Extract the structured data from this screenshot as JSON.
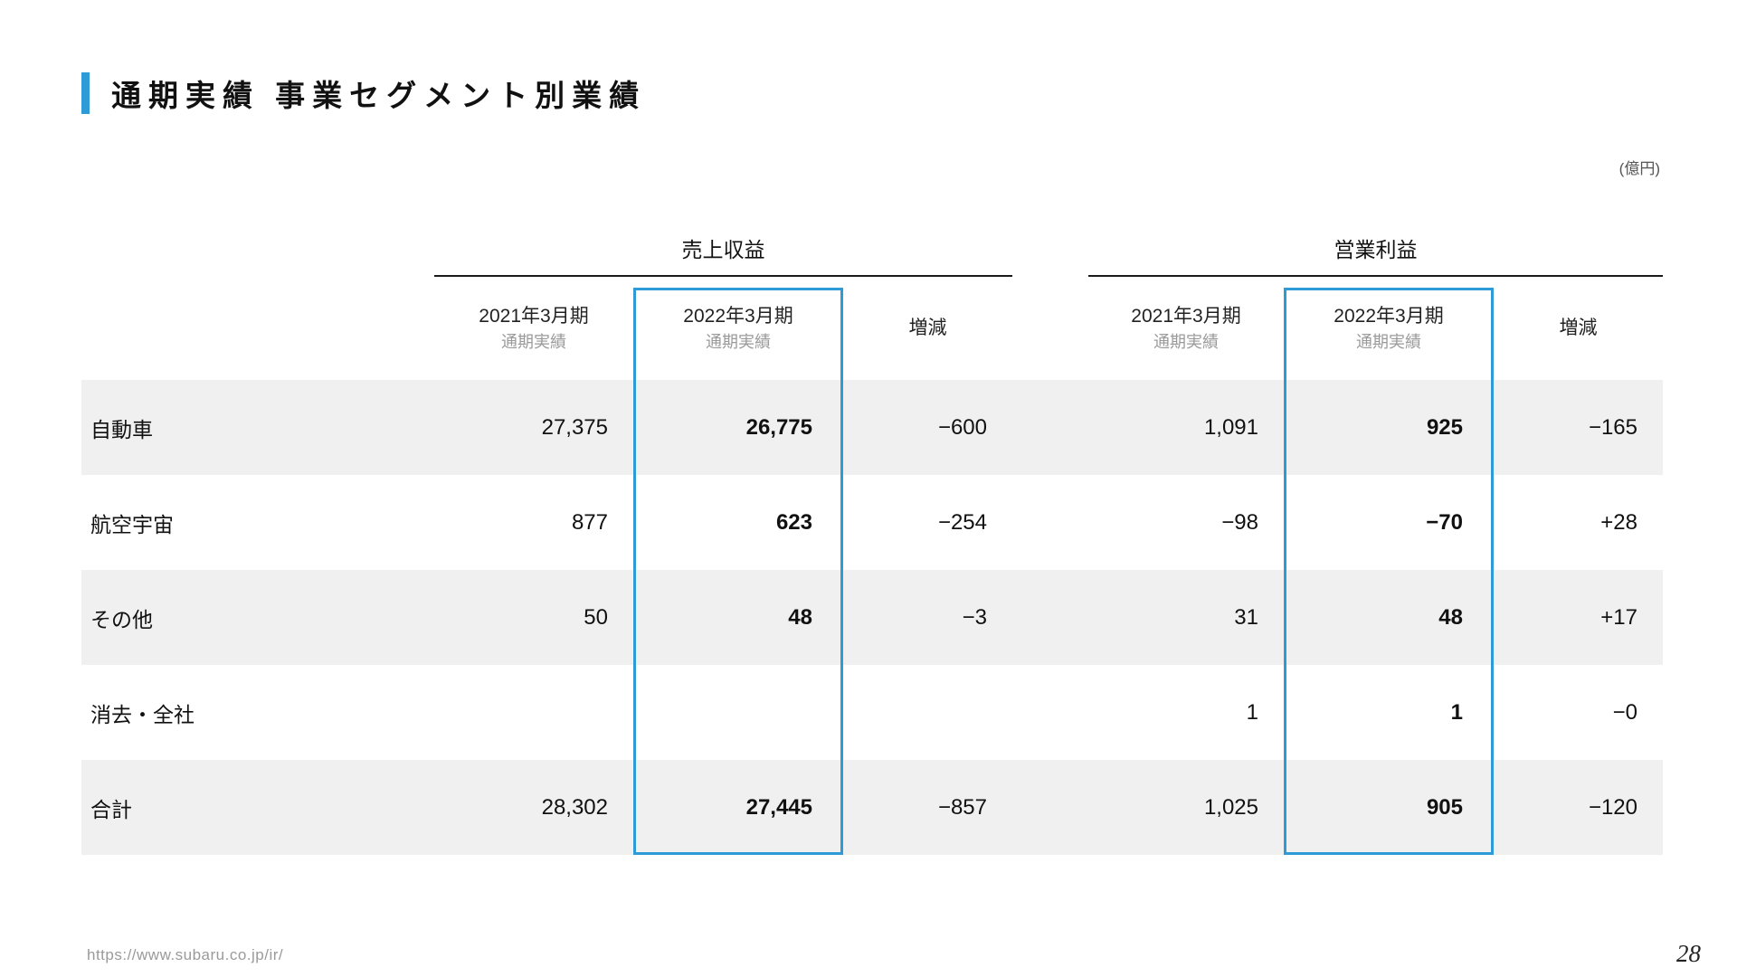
{
  "page": {
    "title": "通期実績 事業セグメント別業績",
    "unit_label": "(億円)",
    "footer_url": "https://www.subaru.co.jp/ir/",
    "page_number": "28"
  },
  "colors": {
    "accent_blue": "#2f9bd6",
    "stripe_gray": "#f0f0f0",
    "header_subtext_gray": "#9a9a9a"
  },
  "table": {
    "groups": [
      {
        "label": "売上収益"
      },
      {
        "label": "営業利益"
      }
    ],
    "columns": [
      {
        "line1": "2021年3月期",
        "line2": "通期実績"
      },
      {
        "line1": "2022年3月期",
        "line2": "通期実績",
        "highlight": true
      },
      {
        "line1": "増減",
        "line2": ""
      },
      {
        "line1": "2021年3月期",
        "line2": "通期実績"
      },
      {
        "line1": "2022年3月期",
        "line2": "通期実績",
        "highlight": true
      },
      {
        "line1": "増減",
        "line2": ""
      }
    ],
    "rows": [
      {
        "label": "自動車",
        "values": [
          "27,375",
          "26,775",
          "−600",
          "1,091",
          "925",
          "−165"
        ]
      },
      {
        "label": "航空宇宙",
        "values": [
          "877",
          "623",
          "−254",
          "−98",
          "−70",
          "+28"
        ]
      },
      {
        "label": "その他",
        "values": [
          "50",
          "48",
          "−3",
          "31",
          "48",
          "+17"
        ]
      },
      {
        "label": "消去・全社",
        "values": [
          "",
          "",
          "",
          "1",
          "1",
          "−0"
        ]
      },
      {
        "label": "合計",
        "values": [
          "28,302",
          "27,445",
          "−857",
          "1,025",
          "905",
          "−120"
        ]
      }
    ]
  }
}
